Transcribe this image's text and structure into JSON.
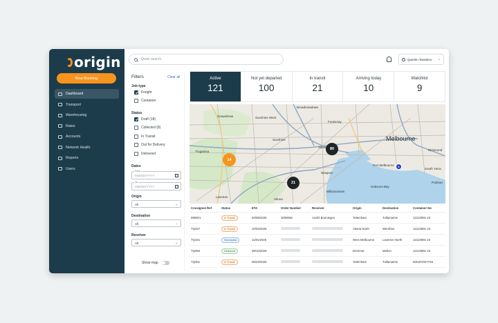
{
  "sidebar": {
    "logo": "origin",
    "new_booking": "New Booking",
    "items": [
      {
        "label": "Dashboard",
        "icon": "dashboard-icon",
        "active": true
      },
      {
        "label": "Transport",
        "icon": "truck-icon"
      },
      {
        "label": "Warehousing",
        "icon": "warehouse-icon"
      },
      {
        "label": "Rates",
        "icon": "rates-icon"
      },
      {
        "label": "Accounts",
        "icon": "accounts-icon"
      },
      {
        "label": "Network Health",
        "icon": "network-icon"
      },
      {
        "label": "Reports",
        "icon": "reports-icon"
      },
      {
        "label": "Users",
        "icon": "users-icon"
      }
    ]
  },
  "header": {
    "search_placeholder": "Quick search",
    "user_name": "Quentin Tarantino"
  },
  "filters": {
    "title": "Filters",
    "clear": "Clear all",
    "job_type_label": "Job type",
    "job_types": [
      {
        "label": "Freight",
        "checked": true
      },
      {
        "label": "Container",
        "checked": false
      }
    ],
    "status_label": "Status",
    "statuses": [
      {
        "label": "Draft (18)",
        "checked": true
      },
      {
        "label": "Collected (8)",
        "checked": false
      },
      {
        "label": "In Transit",
        "checked": false
      },
      {
        "label": "Out for Delivery",
        "checked": false
      },
      {
        "label": "Delivered",
        "checked": false
      }
    ],
    "dates_label": "Dates",
    "from_label": "From",
    "to_label": "To",
    "date_placeholder": "MM/DD/YYYY",
    "origin_label": "Origin",
    "origin_value": "All",
    "destination_label": "Destination",
    "destination_value": "All",
    "receiver_label": "Receiver",
    "receiver_value": "All",
    "show_map": "Show map"
  },
  "stats": [
    {
      "label": "Active",
      "value": "121",
      "active": true
    },
    {
      "label": "Not yet departed",
      "value": "100"
    },
    {
      "label": "In transit",
      "value": "21"
    },
    {
      "label": "Arriving today",
      "value": "10"
    },
    {
      "label": "Watchlist",
      "value": "9"
    }
  ],
  "map": {
    "city": "Melbourne",
    "places": [
      "Broadmeadows",
      "Gowanbrae",
      "Sunshine West",
      "Footscray",
      "Yarraville",
      "Newport",
      "Williamstown",
      "Truganina",
      "Laverton",
      "Altona",
      "Richmond",
      "South Yarra",
      "Prahran",
      "Port Melbourne",
      "Sunshine",
      "Hobsons Bay"
    ],
    "clusters": [
      {
        "label": "14",
        "color": "#f7941d"
      },
      {
        "label": "80",
        "color": "#1f2426"
      },
      {
        "label": "21",
        "color": "#1f2426"
      },
      {
        "label": "6",
        "color": "#1a3fbf"
      }
    ]
  },
  "table": {
    "columns": [
      "Consignee Ref",
      "Status",
      "ETA",
      "Order Number",
      "Receiver",
      "Origin",
      "Destination",
      "Container No"
    ],
    "rows": [
      {
        "ref": "090001",
        "status": "In Transit",
        "status_type": "transit",
        "eta": "03/09/2025",
        "order": "3009606",
        "receiver": "André Bonnieges",
        "origin": "Tottenham",
        "destination": "Tullamarine",
        "container": "12123891 23"
      },
      {
        "ref": "TQ327",
        "status": "In Transit",
        "status_type": "transit",
        "eta": "10/03/2025",
        "order": "",
        "receiver": "",
        "origin": "Altona North",
        "destination": "Werribee",
        "container": "12123891 23"
      },
      {
        "ref": "TQ161",
        "status": "Scheduled",
        "status_type": "scheduled",
        "eta": "11/01/2025",
        "order": "",
        "receiver": "",
        "origin": "West Melbourne",
        "destination": "Laverton North",
        "container": "12123891 23"
      },
      {
        "ref": "TQ394",
        "status": "Delivered",
        "status_type": "delivered",
        "eta": "09/10/2025",
        "order": "",
        "receiver": "",
        "origin": "Derrimut",
        "destination": "Melton",
        "container": "12123891 23"
      },
      {
        "ref": "TQ301",
        "status": "In Transit",
        "status_type": "transit",
        "eta": "06/23/2025",
        "order": "",
        "receiver": "",
        "origin": "Tottenham",
        "destination": "Tullamarine",
        "container": "MSUF4027749"
      }
    ]
  }
}
